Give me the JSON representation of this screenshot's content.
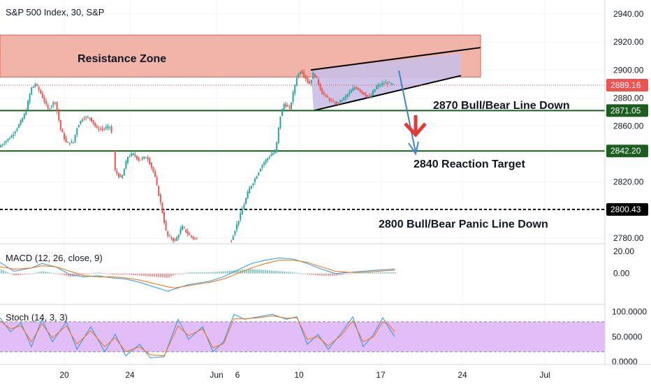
{
  "header": {
    "title": "S&P 500 Index, 30, S&P"
  },
  "colors": {
    "up": "#26a69a",
    "down": "#ef5350",
    "green_line": "#1b5e20",
    "resistance_fill": "#f0b4a8",
    "resistance_stroke": "#e06050",
    "channel_fill": "#c9bfe6",
    "macd_line": "#2196f3",
    "signal_line": "#ff6d00",
    "stoch_k": "#2196f3",
    "stoch_d": "#ff6d00",
    "stoch_band": "#e1bef7",
    "arrow_blue": "#3d85c6",
    "arrow_red": "#e53935"
  },
  "annotations": {
    "resistance": "Resistance Zone",
    "line_2870": "2870 Bull/Bear Line Down",
    "reaction": "2840 Reaction Target",
    "panic": "2800 Bull/Bear Panic Line Down"
  },
  "price_axis": {
    "ticks": [
      "2940.00",
      "2920.00",
      "2900.00",
      "2880.00",
      "2860.00",
      "2840.00",
      "2820.00",
      "2780.00"
    ],
    "badges": {
      "current": "2889.16",
      "line_2871": "2871.05",
      "line_2842": "2842.20",
      "line_2800": "2800.43"
    }
  },
  "macd": {
    "label": "MACD (12, 26, close, 9)",
    "ticks": [
      "20.00",
      "0.00"
    ]
  },
  "stoch": {
    "label": "Stoch (14, 3, 3)",
    "ticks": [
      "100.0000",
      "50.0000",
      "0.0000"
    ]
  },
  "time_axis": {
    "labels": [
      "20",
      "24",
      "Jun",
      "6",
      "10",
      "17",
      "24",
      "Jul"
    ]
  },
  "chart_data": {
    "type": "candlestick",
    "title": "S&P 500 Index, 30, S&P",
    "y_range": [
      2776,
      2950
    ],
    "resistance_zone": [
      2895,
      2925
    ],
    "horizontal_levels": [
      2889.16,
      2871.05,
      2842.2,
      2800.43
    ],
    "channel": {
      "upper": [
        [
          445,
          2900
        ],
        [
          688,
          2916
        ]
      ],
      "lower": [
        [
          449,
          2871
        ],
        [
          660,
          2896
        ]
      ]
    },
    "price_path": [
      [
        0,
        2845
      ],
      [
        18,
        2853
      ],
      [
        30,
        2862
      ],
      [
        38,
        2870
      ],
      [
        46,
        2887
      ],
      [
        52,
        2890
      ],
      [
        60,
        2883
      ],
      [
        70,
        2872
      ],
      [
        80,
        2878
      ],
      [
        88,
        2858
      ],
      [
        96,
        2848
      ],
      [
        106,
        2848
      ],
      [
        112,
        2860
      ],
      [
        120,
        2866
      ],
      [
        130,
        2866
      ],
      [
        140,
        2858
      ],
      [
        150,
        2858
      ],
      [
        160,
        2860
      ],
      [
        166,
        2828
      ],
      [
        175,
        2822
      ],
      [
        184,
        2838
      ],
      [
        192,
        2840
      ],
      [
        200,
        2836
      ],
      [
        212,
        2838
      ],
      [
        222,
        2826
      ],
      [
        232,
        2803
      ],
      [
        240,
        2782
      ],
      [
        252,
        2778
      ],
      [
        262,
        2788
      ],
      [
        272,
        2782
      ],
      [
        278,
        2780
      ],
      [
        290,
        2778
      ],
      [
        332,
        2778
      ],
      [
        345,
        2796
      ],
      [
        358,
        2815
      ],
      [
        366,
        2822
      ],
      [
        376,
        2832
      ],
      [
        386,
        2838
      ],
      [
        396,
        2842
      ],
      [
        402,
        2866
      ],
      [
        408,
        2876
      ],
      [
        416,
        2872
      ],
      [
        426,
        2895
      ],
      [
        432,
        2900
      ],
      [
        438,
        2895
      ],
      [
        444,
        2890
      ],
      [
        450,
        2898
      ],
      [
        456,
        2892
      ],
      [
        462,
        2884
      ],
      [
        470,
        2880
      ],
      [
        480,
        2876
      ],
      [
        490,
        2878
      ],
      [
        500,
        2883
      ],
      [
        510,
        2888
      ],
      [
        520,
        2884
      ],
      [
        530,
        2880
      ],
      [
        540,
        2888
      ],
      [
        548,
        2890
      ],
      [
        556,
        2891
      ],
      [
        565,
        2889
      ]
    ],
    "macd_path": [
      [
        0,
        10
      ],
      [
        20,
        2
      ],
      [
        45,
        5
      ],
      [
        60,
        9
      ],
      [
        80,
        6
      ],
      [
        100,
        -1
      ],
      [
        120,
        -3
      ],
      [
        140,
        -2
      ],
      [
        160,
        -4
      ],
      [
        180,
        -5
      ],
      [
        200,
        -8
      ],
      [
        220,
        -12
      ],
      [
        240,
        -16
      ],
      [
        250,
        -14
      ],
      [
        270,
        -10
      ],
      [
        300,
        -7
      ],
      [
        320,
        -3
      ],
      [
        340,
        3
      ],
      [
        360,
        9
      ],
      [
        380,
        12
      ],
      [
        400,
        14
      ],
      [
        420,
        13
      ],
      [
        440,
        9
      ],
      [
        460,
        4
      ],
      [
        480,
        0
      ],
      [
        500,
        1
      ],
      [
        520,
        2
      ],
      [
        540,
        3
      ],
      [
        565,
        4
      ]
    ],
    "signal_path": [
      [
        0,
        6
      ],
      [
        20,
        4
      ],
      [
        45,
        5
      ],
      [
        60,
        7
      ],
      [
        80,
        6
      ],
      [
        100,
        2
      ],
      [
        120,
        -2
      ],
      [
        140,
        -3
      ],
      [
        160,
        -3
      ],
      [
        180,
        -4
      ],
      [
        200,
        -6
      ],
      [
        220,
        -9
      ],
      [
        240,
        -12
      ],
      [
        250,
        -13
      ],
      [
        270,
        -11
      ],
      [
        300,
        -8
      ],
      [
        320,
        -5
      ],
      [
        340,
        0
      ],
      [
        360,
        5
      ],
      [
        380,
        9
      ],
      [
        400,
        12
      ],
      [
        420,
        12
      ],
      [
        440,
        10
      ],
      [
        460,
        6
      ],
      [
        480,
        2
      ],
      [
        500,
        1
      ],
      [
        520,
        1
      ],
      [
        540,
        2
      ],
      [
        565,
        3
      ]
    ],
    "stoch_k_path": [
      [
        0,
        88
      ],
      [
        15,
        60
      ],
      [
        30,
        78
      ],
      [
        45,
        30
      ],
      [
        60,
        85
      ],
      [
        75,
        40
      ],
      [
        95,
        80
      ],
      [
        110,
        25
      ],
      [
        130,
        70
      ],
      [
        150,
        20
      ],
      [
        165,
        55
      ],
      [
        180,
        12
      ],
      [
        200,
        35
      ],
      [
        215,
        8
      ],
      [
        235,
        10
      ],
      [
        255,
        85
      ],
      [
        270,
        45
      ],
      [
        290,
        70
      ],
      [
        305,
        20
      ],
      [
        320,
        40
      ],
      [
        335,
        95
      ],
      [
        350,
        85
      ],
      [
        370,
        90
      ],
      [
        390,
        95
      ],
      [
        410,
        85
      ],
      [
        425,
        90
      ],
      [
        440,
        35
      ],
      [
        455,
        55
      ],
      [
        470,
        25
      ],
      [
        490,
        60
      ],
      [
        505,
        90
      ],
      [
        520,
        30
      ],
      [
        535,
        55
      ],
      [
        548,
        88
      ],
      [
        556,
        70
      ],
      [
        565,
        50
      ]
    ],
    "stoch_d_path": [
      [
        0,
        82
      ],
      [
        15,
        66
      ],
      [
        30,
        72
      ],
      [
        45,
        40
      ],
      [
        60,
        76
      ],
      [
        75,
        48
      ],
      [
        95,
        72
      ],
      [
        110,
        35
      ],
      [
        130,
        62
      ],
      [
        150,
        30
      ],
      [
        165,
        48
      ],
      [
        180,
        20
      ],
      [
        200,
        30
      ],
      [
        215,
        14
      ],
      [
        235,
        12
      ],
      [
        255,
        72
      ],
      [
        270,
        52
      ],
      [
        290,
        66
      ],
      [
        305,
        28
      ],
      [
        320,
        36
      ],
      [
        335,
        86
      ],
      [
        350,
        86
      ],
      [
        370,
        88
      ],
      [
        390,
        92
      ],
      [
        410,
        87
      ],
      [
        425,
        88
      ],
      [
        440,
        45
      ],
      [
        455,
        50
      ],
      [
        470,
        32
      ],
      [
        490,
        55
      ],
      [
        505,
        82
      ],
      [
        520,
        40
      ],
      [
        535,
        50
      ],
      [
        548,
        80
      ],
      [
        556,
        75
      ],
      [
        565,
        60
      ]
    ],
    "macd_range": [
      -26,
      25
    ],
    "stoch_range": [
      -4,
      112
    ]
  }
}
